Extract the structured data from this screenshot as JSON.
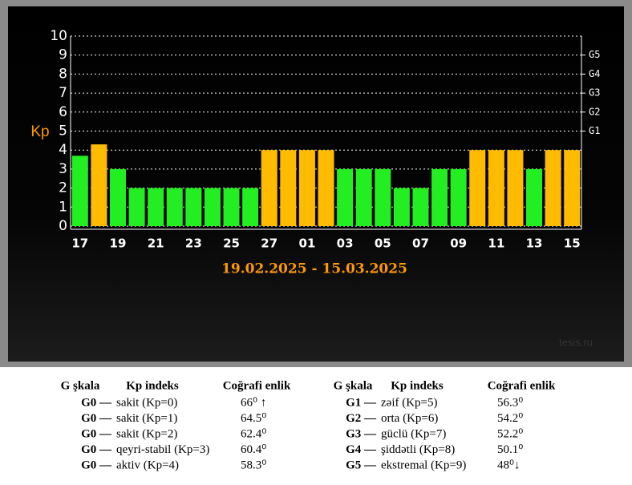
{
  "chart_data": {
    "type": "bar",
    "y_label": "Kp",
    "subtitle": "19.02.2025 - 15.03.2025",
    "watermark": "tesis.ru",
    "categories": [
      "17",
      null,
      "19",
      null,
      "21",
      null,
      "23",
      null,
      "25",
      null,
      "27",
      null,
      "01",
      null,
      "03",
      null,
      "05",
      null,
      "07",
      null,
      "09",
      null,
      "11",
      null,
      "13",
      null,
      "15"
    ],
    "values": [
      3.7,
      4.3,
      3,
      2,
      2,
      2,
      2,
      2,
      2,
      2,
      4,
      4,
      4,
      4,
      3,
      3,
      3,
      2,
      2,
      3,
      3,
      4,
      4,
      4,
      3,
      4,
      4
    ],
    "colors": [
      "#22ee22",
      "#ffbb00",
      "#22ee22",
      "#22ee22",
      "#22ee22",
      "#22ee22",
      "#22ee22",
      "#22ee22",
      "#22ee22",
      "#22ee22",
      "#ffbb00",
      "#ffbb00",
      "#ffbb00",
      "#ffbb00",
      "#22ee22",
      "#22ee22",
      "#22ee22",
      "#22ee22",
      "#22ee22",
      "#22ee22",
      "#22ee22",
      "#ffbb00",
      "#ffbb00",
      "#ffbb00",
      "#22ee22",
      "#ffbb00",
      "#ffbb00"
    ],
    "ylim": [
      0,
      10
    ],
    "yticks": [
      0,
      1,
      2,
      3,
      4,
      5,
      6,
      7,
      8,
      9,
      10
    ],
    "y2lim": [
      0,
      10
    ],
    "y2ticks": [
      {
        "value": 5,
        "label": "G1"
      },
      {
        "value": 6,
        "label": "G2"
      },
      {
        "value": 7,
        "label": "G3"
      },
      {
        "value": 8,
        "label": "G4"
      },
      {
        "value": 9,
        "label": "G5"
      }
    ],
    "grid": true
  },
  "table": {
    "groups": [
      {
        "headers": [
          "G şkala",
          "Kp indeks",
          "Coğrafi enlik"
        ],
        "rows": [
          [
            "G0 —",
            "sakit (Kp=0)",
            "66⁰ ↑"
          ],
          [
            "G0 —",
            "sakit (Kp=1)",
            "64.5⁰"
          ],
          [
            "G0 —",
            "sakit (Kp=2)",
            "62.4⁰"
          ],
          [
            "G0 —",
            "qeyri-stabil (Kp=3)",
            "60.4⁰"
          ],
          [
            "G0 —",
            "aktiv (Kp=4)",
            "58.3⁰"
          ]
        ]
      },
      {
        "headers": [
          "G şkala",
          "Kp indeks",
          "Coğrafi enlik"
        ],
        "rows": [
          [
            "G1 —",
            "zəif (Kp=5)",
            "56.3⁰"
          ],
          [
            "G2 —",
            "orta (Kp=6)",
            "54.2⁰"
          ],
          [
            "G3 —",
            "güclü (Kp=7)",
            "52.2⁰"
          ],
          [
            "G4 —",
            "şiddətli (Kp=8)",
            "50.1⁰"
          ],
          [
            "G5 —",
            "ekstremal (Kp=9)",
            "48⁰↓"
          ]
        ]
      }
    ]
  }
}
